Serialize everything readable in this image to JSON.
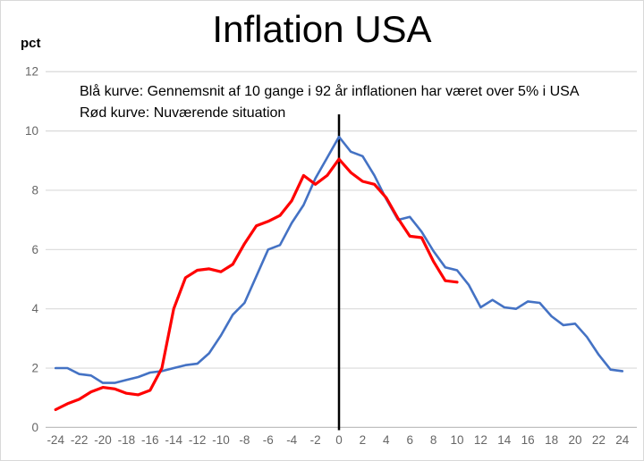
{
  "title": "Inflation USA",
  "y_axis_unit_label": "pct",
  "annotations": {
    "line1": "Blå kurve: Gennemsnit af 10 gange i 92 år inflationen har været over 5% i USA",
    "line2": "Rød kurve: Nuværende situation"
  },
  "colors": {
    "blue_series": "#4472C4",
    "red_series": "#FF0000",
    "gridline": "#D9D9D9",
    "zero_axis_line": "#C0C0C0",
    "tick_label": "#666666",
    "vertical_marker": "#000000"
  },
  "chart_data": {
    "type": "line",
    "title": "Inflation USA",
    "xlabel": "",
    "ylabel": "pct",
    "xlim": [
      -25,
      25
    ],
    "ylim": [
      0,
      12
    ],
    "grid": "horizontal",
    "legend_position": "none (described in text annotations)",
    "x_ticks": [
      -24,
      -22,
      -20,
      -18,
      -16,
      -14,
      -12,
      -10,
      -8,
      -6,
      -4,
      -2,
      0,
      2,
      4,
      6,
      8,
      10,
      12,
      14,
      16,
      18,
      20,
      22,
      24
    ],
    "y_ticks": [
      0,
      2,
      4,
      6,
      8,
      10,
      12
    ],
    "vertical_marker_x": 0,
    "series": [
      {
        "name": "Blå kurve: Gennemsnit af 10 gange i 92 år inflationen har været over 5% i USA",
        "color": "#4472C4",
        "stroke_width": 2.6,
        "x": [
          -24,
          -23,
          -22,
          -21,
          -20,
          -19,
          -18,
          -17,
          -16,
          -15,
          -14,
          -13,
          -12,
          -11,
          -10,
          -9,
          -8,
          -7,
          -6,
          -5,
          -4,
          -3,
          -2,
          -1,
          0,
          1,
          2,
          3,
          4,
          5,
          6,
          7,
          8,
          9,
          10,
          11,
          12,
          13,
          14,
          15,
          16,
          17,
          18,
          19,
          20,
          21,
          22,
          23,
          24
        ],
        "values": [
          2.0,
          2.0,
          1.8,
          1.75,
          1.5,
          1.5,
          1.6,
          1.7,
          1.85,
          1.9,
          2.0,
          2.1,
          2.15,
          2.5,
          3.1,
          3.8,
          4.2,
          5.1,
          6.0,
          6.15,
          6.9,
          7.5,
          8.4,
          9.1,
          9.8,
          9.3,
          9.15,
          8.5,
          7.7,
          7.0,
          7.1,
          6.6,
          5.95,
          5.4,
          5.3,
          4.8,
          4.05,
          4.3,
          4.05,
          4.0,
          4.25,
          4.2,
          3.75,
          3.45,
          3.5,
          3.05,
          2.45,
          1.95,
          1.9
        ]
      },
      {
        "name": "Rød kurve: Nuværende situation",
        "color": "#FF0000",
        "stroke_width": 3.2,
        "x": [
          -24,
          -23,
          -22,
          -21,
          -20,
          -19,
          -18,
          -17,
          -16,
          -15,
          -14,
          -13,
          -12,
          -11,
          -10,
          -9,
          -8,
          -7,
          -6,
          -5,
          -4,
          -3,
          -2,
          -1,
          0,
          1,
          2,
          3,
          4,
          5,
          6,
          7,
          8,
          9,
          10
        ],
        "values": [
          0.6,
          0.8,
          0.95,
          1.2,
          1.35,
          1.3,
          1.15,
          1.1,
          1.25,
          2.0,
          4.0,
          5.05,
          5.3,
          5.35,
          5.25,
          5.5,
          6.2,
          6.8,
          6.95,
          7.15,
          7.65,
          8.5,
          8.2,
          8.5,
          9.05,
          8.6,
          8.3,
          8.2,
          7.75,
          7.05,
          6.45,
          6.4,
          5.6,
          4.95,
          4.9
        ]
      }
    ]
  }
}
